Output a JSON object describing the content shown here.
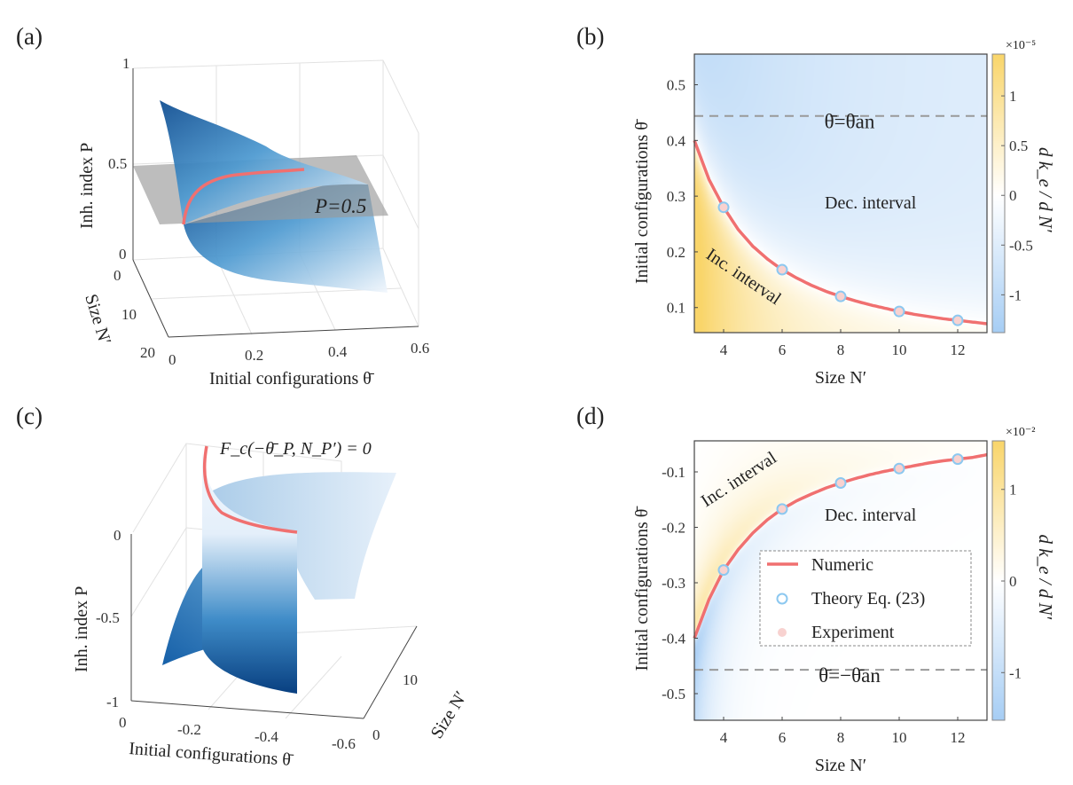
{
  "colors": {
    "numeric": "#f07070",
    "theory_edge": "#8cc8f0",
    "experiment_fill": "#f8d2d0",
    "cmap_low": "#a6cdf4",
    "cmap_mid": "#ffffff",
    "cmap_high": "#f9d56a",
    "surface_dark": "#0b4a8f",
    "surface_light": "#eaf3fb",
    "plane": "#9a9a9a"
  },
  "chart_data": [
    {
      "panel": "(a)",
      "type": "surface",
      "xlabel": "Initial configurations θ̄",
      "ylabel": "Size N′",
      "zlabel": "Inh. index  P",
      "xticks": [
        "0",
        "0.2",
        "0.4",
        "0.6"
      ],
      "yticks": [
        "0",
        "10",
        "20"
      ],
      "zticks": [
        "0",
        "0.5",
        "1"
      ],
      "xlim": [
        0,
        0.6
      ],
      "ylim": [
        0,
        20
      ],
      "zlim": [
        0,
        1
      ],
      "annotation": "P=0.5",
      "plane_level": 0.5
    },
    {
      "panel": "(b)",
      "type": "heatmap",
      "xlabel": "Size N′",
      "ylabel": "Initial configurations θ̄",
      "xlim": [
        3,
        13
      ],
      "ylim": [
        0.055,
        0.555
      ],
      "xticks": [
        4,
        6,
        8,
        10,
        12
      ],
      "yticks": [
        0.1,
        0.2,
        0.3,
        0.4,
        0.5
      ],
      "xtick_labels": [
        "4",
        "6",
        "8",
        "10",
        "12"
      ],
      "ytick_labels": [
        "0.1",
        "0.2",
        "0.3",
        "0.4",
        "0.5"
      ],
      "colorbar": {
        "label": "d k_e / d N′",
        "exponent": "×10⁻⁵",
        "clim": [
          -1.38,
          1.42
        ],
        "ticks": [
          -1,
          -0.5,
          0,
          0.5,
          1
        ],
        "tick_labels": [
          "-1",
          "-0.5",
          "0",
          "0.5",
          "1"
        ]
      },
      "dashed_line": {
        "y": 0.444,
        "label": "θ̄=θ̄an"
      },
      "region_labels": [
        "Dec. interval",
        "Inc. interval"
      ],
      "numeric_curve": {
        "x": [
          3,
          3.5,
          4,
          4.5,
          5,
          5.5,
          6,
          6.5,
          7,
          7.5,
          8,
          8.5,
          9,
          9.5,
          10,
          10.5,
          11,
          11.5,
          12,
          12.5,
          13
        ],
        "y": [
          0.4,
          0.33,
          0.28,
          0.24,
          0.21,
          0.187,
          0.168,
          0.153,
          0.14,
          0.129,
          0.12,
          0.112,
          0.105,
          0.099,
          0.093,
          0.088,
          0.084,
          0.08,
          0.077,
          0.074,
          0.071
        ]
      },
      "theory_points": {
        "x": [
          4,
          6,
          8,
          10,
          12
        ],
        "y": [
          0.28,
          0.168,
          0.12,
          0.093,
          0.077
        ]
      },
      "experiment_points": {
        "x": [
          4,
          6,
          8,
          10,
          12
        ],
        "y": [
          0.28,
          0.168,
          0.12,
          0.093,
          0.077
        ]
      }
    },
    {
      "panel": "(c)",
      "type": "surface",
      "xlabel": "Initial configurations θ̄",
      "ylabel": "Size N′",
      "zlabel": "Inh. index  P",
      "xticks": [
        "0",
        "-0.2",
        "-0.4",
        "-0.6"
      ],
      "yticks": [
        "0",
        "10"
      ],
      "zticks": [
        "-1",
        "-0.5",
        "0"
      ],
      "xlim": [
        0,
        -0.6
      ],
      "zlim": [
        -1,
        0
      ],
      "annotation": "F_c(−θ̄_P, N_P′) = 0"
    },
    {
      "panel": "(d)",
      "type": "heatmap",
      "xlabel": "Size N′",
      "ylabel": "Initial configurations θ̄",
      "xlim": [
        3,
        13
      ],
      "ylim": [
        -0.548,
        -0.044
      ],
      "xticks": [
        4,
        6,
        8,
        10,
        12
      ],
      "yticks": [
        -0.5,
        -0.4,
        -0.3,
        -0.2,
        -0.1
      ],
      "xtick_labels": [
        "4",
        "6",
        "8",
        "10",
        "12"
      ],
      "ytick_labels": [
        "-0.5",
        "-0.4",
        "-0.3",
        "-0.2",
        "-0.1"
      ],
      "colorbar": {
        "label": "d k_e / d N′",
        "exponent": "×10⁻²",
        "clim": [
          -1.52,
          1.53
        ],
        "ticks": [
          -1,
          0,
          1
        ],
        "tick_labels": [
          "-1",
          "0",
          "1"
        ]
      },
      "dashed_line": {
        "y": -0.457,
        "label": "θ̄=−θ̄an"
      },
      "region_labels": [
        "Dec. interval",
        "Inc. interval"
      ],
      "numeric_curve": {
        "x": [
          3,
          3.5,
          4,
          4.5,
          5,
          5.5,
          6,
          6.5,
          7,
          7.5,
          8,
          8.5,
          9,
          9.5,
          10,
          10.5,
          11,
          11.5,
          12,
          12.5,
          13
        ],
        "y": [
          -0.4,
          -0.33,
          -0.277,
          -0.24,
          -0.21,
          -0.186,
          -0.167,
          -0.152,
          -0.14,
          -0.129,
          -0.12,
          -0.112,
          -0.105,
          -0.099,
          -0.094,
          -0.089,
          -0.084,
          -0.08,
          -0.077,
          -0.074,
          -0.069
        ]
      },
      "theory_points": {
        "x": [
          4,
          6,
          8,
          10,
          12
        ],
        "y": [
          -0.277,
          -0.167,
          -0.12,
          -0.094,
          -0.077
        ]
      },
      "experiment_points": {
        "x": [
          4,
          6,
          8,
          10,
          12
        ],
        "y": [
          -0.277,
          -0.167,
          -0.12,
          -0.094,
          -0.077
        ]
      },
      "legend": {
        "placement": "center-right",
        "entries": [
          "Numeric",
          "Theory Eq. (23)",
          "Experiment"
        ]
      }
    }
  ]
}
